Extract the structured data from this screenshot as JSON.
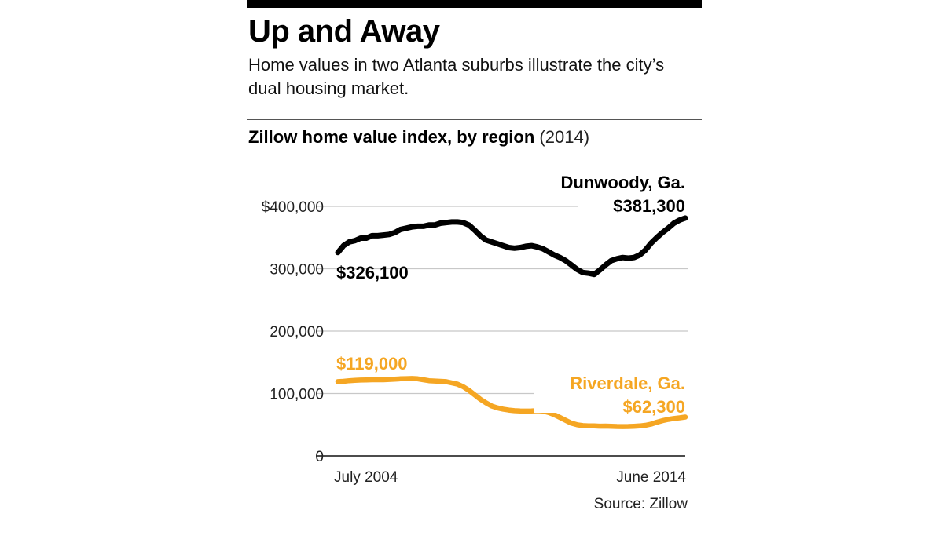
{
  "header": {
    "title": "Up and Away",
    "subtitle": "Home values in two Atlanta suburbs illustrate the city’s dual housing market."
  },
  "chart_heading": {
    "bold": "Zillow home value index, by region",
    "light": "(2014)"
  },
  "source": "Source: Zillow",
  "colors": {
    "dunwoody": "#000000",
    "riverdale": "#f5a623",
    "grid": "#c8c8c8",
    "axis": "#111111"
  },
  "chart_data": {
    "type": "line",
    "title": "Zillow home value index, by region (2014)",
    "x_start_label": "July 2004",
    "x_end_label": "June 2014",
    "ylim": [
      0,
      400000
    ],
    "yticks": [
      0,
      100000,
      200000,
      300000,
      400000
    ],
    "ytick_labels": [
      "0",
      "100,000",
      "200,000",
      "300,000",
      "$400,000"
    ],
    "grid": true,
    "series": [
      {
        "name": "Dunwoody, Ga.",
        "start_label": "$326,100",
        "end_label": "$381,300",
        "values": [
          326100,
          337000,
          343000,
          345000,
          349000,
          349000,
          353000,
          353000,
          354000,
          355000,
          358000,
          363000,
          365000,
          367000,
          368000,
          368000,
          370000,
          370000,
          373000,
          374000,
          375000,
          375000,
          374000,
          370000,
          362000,
          353000,
          346000,
          343000,
          340000,
          337000,
          334000,
          333000,
          334000,
          336000,
          337000,
          335000,
          332000,
          327000,
          322000,
          318000,
          313000,
          306000,
          299000,
          294000,
          293000,
          291000,
          298000,
          306000,
          313000,
          316000,
          318000,
          317000,
          318000,
          322000,
          330000,
          341000,
          350000,
          358000,
          365000,
          373000,
          378000,
          381300
        ]
      },
      {
        "name": "Riverdale, Ga.",
        "start_label": "$119,000",
        "end_label": "$62,300",
        "values": [
          119000,
          119500,
          120500,
          121000,
          121500,
          121700,
          122000,
          122000,
          122000,
          122500,
          123000,
          123500,
          123800,
          124000,
          123500,
          122000,
          120500,
          120000,
          119500,
          119000,
          117000,
          115000,
          111000,
          105000,
          98000,
          91000,
          85000,
          80000,
          77000,
          75000,
          73500,
          72500,
          72000,
          71800,
          72000,
          72500,
          72000,
          69500,
          66000,
          61500,
          57000,
          52500,
          50000,
          48500,
          48200,
          48000,
          47700,
          47800,
          47500,
          47200,
          47000,
          47200,
          47500,
          48000,
          49000,
          51000,
          54000,
          56500,
          58500,
          60000,
          61000,
          62300
        ]
      }
    ]
  }
}
